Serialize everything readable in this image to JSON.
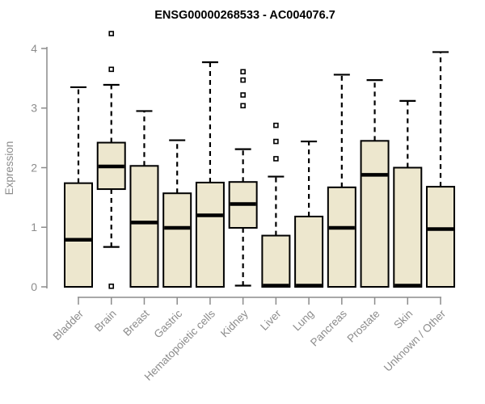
{
  "chart_data": {
    "type": "boxplot",
    "title": "ENSG00000268533 - AC004076.7",
    "ylabel": "Expression",
    "xlabel": "",
    "ylim": [
      0,
      4
    ],
    "yticks": [
      0,
      1,
      2,
      3,
      4
    ],
    "grid": false,
    "legend": "none",
    "categories": [
      "Bladder",
      "Brain",
      "Breast",
      "Gastric",
      "Hematopoietic cells",
      "Kidney",
      "Liver",
      "Lung",
      "Pancreas",
      "Prostate",
      "Skin",
      "Unknown / Other"
    ],
    "series": [
      {
        "name": "Bladder",
        "whisker_low": 0,
        "q1": 0,
        "median": 0.79,
        "q3": 1.74,
        "whisker_high": 3.35,
        "outliers": []
      },
      {
        "name": "Brain",
        "whisker_low": 0.67,
        "q1": 1.64,
        "median": 2.02,
        "q3": 2.42,
        "whisker_high": 3.39,
        "outliers": [
          4.25,
          3.65,
          0.01
        ]
      },
      {
        "name": "Breast",
        "whisker_low": 0,
        "q1": 0,
        "median": 1.08,
        "q3": 2.03,
        "whisker_high": 2.95,
        "outliers": []
      },
      {
        "name": "Gastric",
        "whisker_low": 0,
        "q1": 0,
        "median": 0.99,
        "q3": 1.57,
        "whisker_high": 2.46,
        "outliers": []
      },
      {
        "name": "Hematopoietic cells",
        "whisker_low": 0,
        "q1": 0,
        "median": 1.2,
        "q3": 1.75,
        "whisker_high": 3.77,
        "outliers": []
      },
      {
        "name": "Kidney",
        "whisker_low": 0.02,
        "q1": 0.99,
        "median": 1.39,
        "q3": 1.76,
        "whisker_high": 2.31,
        "outliers": [
          3.61,
          3.47,
          3.22,
          3.04
        ]
      },
      {
        "name": "Liver",
        "whisker_low": 0,
        "q1": 0,
        "median": 0.02,
        "q3": 0.86,
        "whisker_high": 1.85,
        "outliers": [
          2.71,
          2.44,
          2.15
        ]
      },
      {
        "name": "Lung",
        "whisker_low": 0,
        "q1": 0,
        "median": 0.02,
        "q3": 1.18,
        "whisker_high": 2.44,
        "outliers": []
      },
      {
        "name": "Pancreas",
        "whisker_low": 0,
        "q1": 0,
        "median": 0.99,
        "q3": 1.67,
        "whisker_high": 3.56,
        "outliers": []
      },
      {
        "name": "Prostate",
        "whisker_low": 0,
        "q1": 0,
        "median": 1.88,
        "q3": 2.45,
        "whisker_high": 3.47,
        "outliers": []
      },
      {
        "name": "Skin",
        "whisker_low": 0,
        "q1": 0,
        "median": 0.02,
        "q3": 2.0,
        "whisker_high": 3.12,
        "outliers": []
      },
      {
        "name": "Unknown / Other",
        "whisker_low": 0,
        "q1": 0,
        "median": 0.97,
        "q3": 1.68,
        "whisker_high": 3.94,
        "outliers": []
      }
    ],
    "colors": {
      "box_fill": "#EDE7CE",
      "box_stroke": "#000000",
      "median": "#000000",
      "whisker": "#000000",
      "outlier": "#000000",
      "axis": "#8C8C8C",
      "tick_labels": "#8C8C8C",
      "title": "#000000"
    }
  }
}
